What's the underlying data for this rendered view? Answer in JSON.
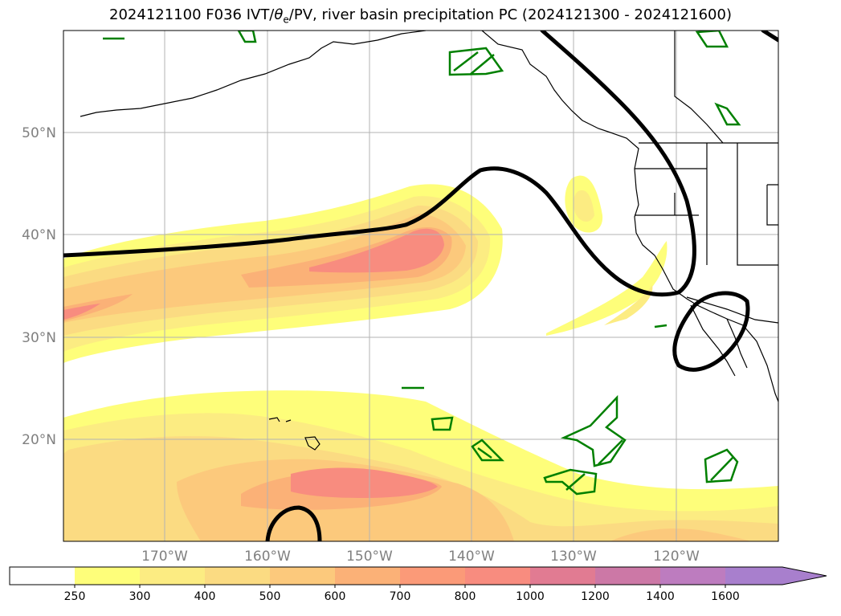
{
  "title": {
    "prefix": "2024121100 F036 IVT/",
    "theta": "θ",
    "theta_sub": "e",
    "suffix": "/PV, river basin precipitation PC (2024121300 - 2024121600)"
  },
  "map": {
    "lat_labels": [
      "50°N",
      "40°N",
      "30°N",
      "20°N"
    ],
    "lon_labels": [
      "170°W",
      "160°W",
      "150°W",
      "140°W",
      "130°W",
      "120°W"
    ]
  },
  "colorbar": {
    "ticks": [
      "250",
      "300",
      "400",
      "500",
      "600",
      "700",
      "800",
      "1000",
      "1200",
      "1400",
      "1600"
    ],
    "colors": [
      "#ffffff",
      "#fefe7a",
      "#fcec82",
      "#fbdb82",
      "#fcc97c",
      "#fbb177",
      "#fb9a78",
      "#f88c7f",
      "#e17b92",
      "#cc78a6",
      "#bd7cbf",
      "#a87fcd"
    ],
    "extend": "max"
  }
}
